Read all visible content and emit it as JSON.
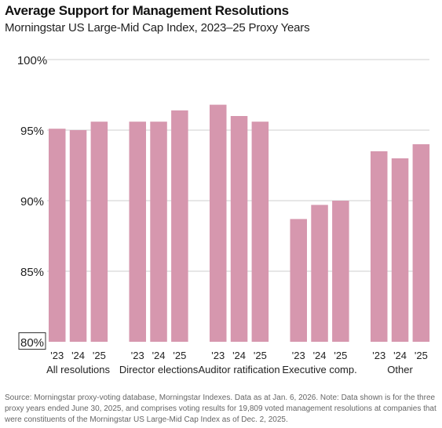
{
  "header": {
    "title": "Average Support for Management Resolutions",
    "subtitle": "Morningstar US Large-Mid Cap Index, 2023–25 Proxy Years"
  },
  "source": "Source: Morningstar proxy-voting database, Morningstar Indexes. Data as at Jan. 6, 2026. Note: Data shown is for the three proxy years ended June 30, 2025, and comprises voting results for 19,809 voted management resolutions at companies that were constituents of the Morningstar US Large-Mid Cap Index as of Dec. 2, 2025.",
  "colors": {
    "bar": "#d697ae",
    "grid": "#cfcfcf",
    "text": "#222222"
  },
  "chart_data": {
    "type": "bar",
    "title": "Average Support for Management Resolutions",
    "subtitle": "Morningstar US Large-Mid Cap Index, 2023–25 Proxy Years",
    "ylim": [
      80,
      100
    ],
    "yticks": [
      80,
      85,
      90,
      95,
      100
    ],
    "ytick_labels": [
      "80%",
      "85%",
      "90%",
      "95%",
      "100%"
    ],
    "grid": true,
    "year_labels": [
      "'23",
      "'24",
      "'25"
    ],
    "groups": [
      {
        "name": "All resolutions",
        "values": [
          95.1,
          95.0,
          95.6
        ]
      },
      {
        "name": "Director elections",
        "values": [
          95.6,
          95.6,
          96.4
        ]
      },
      {
        "name": "Auditor ratification",
        "values": [
          96.8,
          96.0,
          95.6
        ]
      },
      {
        "name": "Executive comp.",
        "values": [
          88.7,
          89.7,
          90.0
        ]
      },
      {
        "name": "Other",
        "values": [
          93.5,
          93.0,
          94.0
        ]
      }
    ]
  }
}
